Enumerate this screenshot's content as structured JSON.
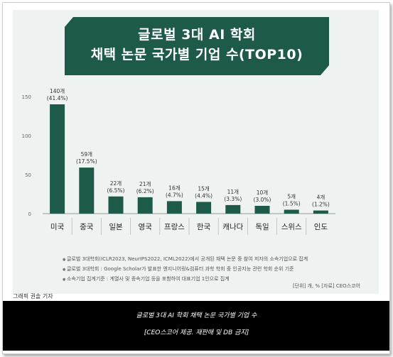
{
  "title": {
    "line1": "글로벌 3대 AI 학회",
    "line2": "채택 논문 국가별 기업 수(TOP10)"
  },
  "colors": {
    "bar": "#1d5a49",
    "banner": "#1d5a49",
    "background": "#eef2f0"
  },
  "chart_data": {
    "type": "bar",
    "categories": [
      "미국",
      "중국",
      "일본",
      "영국",
      "프랑스",
      "한국",
      "캐나다",
      "독일",
      "스위스",
      "인도"
    ],
    "values": [
      140,
      59,
      22,
      21,
      16,
      15,
      11,
      10,
      5,
      4
    ],
    "value_labels": [
      "140개",
      "59개",
      "22개",
      "21개",
      "16개",
      "15개",
      "11개",
      "10개",
      "5개",
      "4개"
    ],
    "percent_labels": [
      "(41.4%)",
      "(17.5%)",
      "(6.5%)",
      "(6.2%)",
      "(4.7%)",
      "(4.4%)",
      "(3.3%)",
      "(3.0%)",
      "(1.5%)",
      "(1.2%)"
    ],
    "yticks": [
      "0",
      "50",
      "100",
      "150"
    ],
    "ylim": [
      0,
      150
    ],
    "grid": false,
    "title": "글로벌 3대 AI 학회 채택 논문 국가별 기업 수(TOP10)",
    "xlabel": "",
    "ylabel": ""
  },
  "notes": [
    "글로벌 3대학회(ICLR2023, NeurIPS2022, ICML2022)에서 공개된 채택 논문 중 참여 저자의 소속기업으로 집계",
    "글로벌 3대학회 : Google Scholar가 발표한 엔지니어링&컴퓨터 과학 학회 중 인공지능 관련 학회 순위 기준",
    "소속기업 집계기준 : 계열사 및 종속기업 등을 포함하여 대표기업 1인으로 집계"
  ],
  "unit_source": "[단위] 개, %   [자료] CEO스코어",
  "credit": "그래픽 권솔 기자",
  "caption": {
    "line1": "글로벌 3대 AI 학회 채택 논문 국가별 기업 수",
    "line2": "[CEO스코어 제공. 재판매 및 DB 금지]"
  }
}
